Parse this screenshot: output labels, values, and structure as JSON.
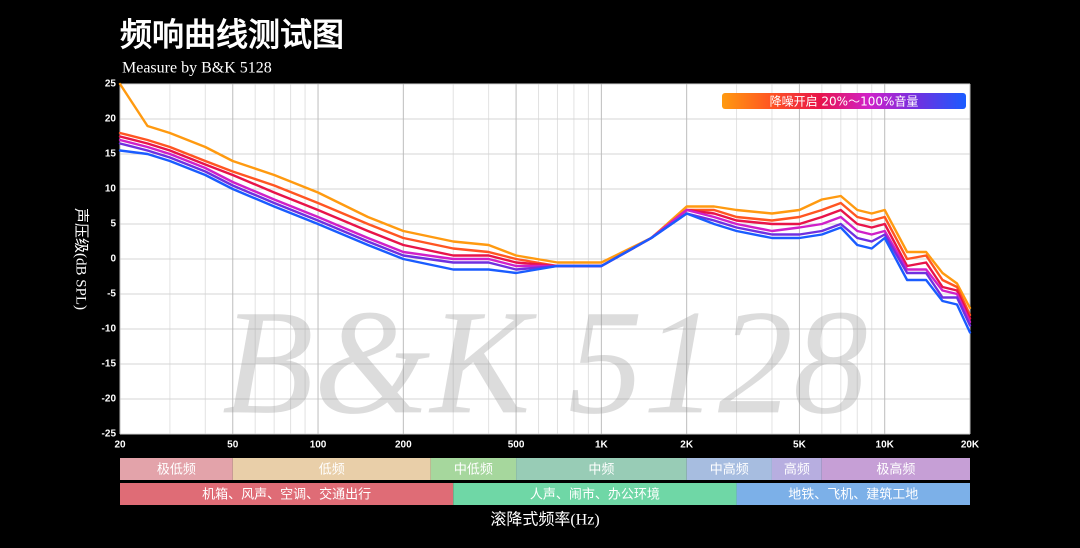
{
  "chart_data": {
    "type": "line",
    "title": "频响曲线测试图",
    "subtitle": "Measure by B&K 5128",
    "watermark": "B&K 5128",
    "legend_text": "降噪开启 20%～100%音量",
    "y_label": "声压级(dB SPL)",
    "x_label": "滚降式频率(Hz)",
    "log_x": true,
    "grid": true,
    "legend_position": "top-right",
    "xlim": [
      20,
      20000
    ],
    "ylim": [
      -25,
      25
    ],
    "xticks": [
      20,
      50,
      100,
      200,
      500,
      {
        "value": 1000,
        "label": "1K"
      },
      {
        "value": 2000,
        "label": "2K"
      },
      {
        "value": 5000,
        "label": "5K"
      },
      {
        "value": 10000,
        "label": "10K"
      },
      {
        "value": 20000,
        "label": "20K"
      }
    ],
    "xminorticks": [
      30,
      40,
      60,
      70,
      80,
      90,
      300,
      400,
      600,
      700,
      800,
      900,
      3000,
      4000,
      6000,
      7000,
      8000,
      9000
    ],
    "yticks": [
      25,
      20,
      15,
      10,
      5,
      0,
      -5,
      -10,
      -15,
      -20,
      -25
    ],
    "x": [
      20,
      25,
      30,
      40,
      50,
      70,
      100,
      150,
      200,
      300,
      400,
      500,
      700,
      1000,
      1500,
      2000,
      2500,
      3000,
      4000,
      5000,
      6000,
      7000,
      8000,
      9000,
      10000,
      12000,
      14000,
      16000,
      18000,
      20000
    ],
    "series": [
      {
        "color": "#ff9a10",
        "values": [
          25,
          19,
          18,
          16,
          14,
          12,
          9.5,
          6,
          4,
          2.5,
          2,
          0.5,
          -0.5,
          -0.5,
          3,
          7.5,
          7.5,
          7,
          6.5,
          7,
          8.5,
          9,
          7,
          6.5,
          7,
          1,
          1,
          -2,
          -3.5,
          -7
        ]
      },
      {
        "color": "#ff5522",
        "values": [
          18,
          17,
          16,
          14,
          12.5,
          10.5,
          8,
          5,
          3,
          1.5,
          1,
          0,
          -1,
          -1,
          3,
          7,
          7,
          6,
          5.5,
          6,
          7,
          8,
          6,
          5.5,
          6,
          0,
          0.5,
          -3,
          -4,
          -8
        ]
      },
      {
        "color": "#e8144a",
        "values": [
          17.5,
          16.5,
          15.5,
          13.5,
          12,
          9.5,
          7,
          4,
          2,
          0.5,
          0.5,
          -0.5,
          -1,
          -1,
          3,
          7,
          6.5,
          5.5,
          5,
          5,
          6,
          7,
          5,
          4.5,
          5,
          -1,
          -0.5,
          -4,
          -4.5,
          -8.5
        ]
      },
      {
        "color": "#d020c8",
        "values": [
          17,
          16,
          15,
          13,
          11,
          8.5,
          6,
          3,
          1,
          0,
          0,
          -1,
          -1,
          -1,
          3,
          7,
          6,
          5,
          4,
          4.5,
          5,
          6,
          4,
          3.5,
          4,
          -1.5,
          -1.5,
          -4.5,
          -5,
          -9
        ]
      },
      {
        "color": "#7030e0",
        "values": [
          16.5,
          15.5,
          14.5,
          12.5,
          10.5,
          8,
          5.5,
          2.5,
          0.5,
          -0.5,
          -0.5,
          -1.5,
          -1,
          -1,
          3,
          6.5,
          5.5,
          4.5,
          3.5,
          3.5,
          4,
          5,
          3,
          2.5,
          3.5,
          -2,
          -2,
          -5.5,
          -5.5,
          -9.5
        ]
      },
      {
        "color": "#1a5cff",
        "values": [
          15.5,
          15,
          14,
          12,
          10,
          7.5,
          5,
          2,
          0,
          -1.5,
          -1.5,
          -2,
          -1,
          -1,
          3,
          6.5,
          5,
          4,
          3,
          3,
          3.5,
          4.5,
          2,
          1.5,
          3,
          -3,
          -3,
          -6,
          -6.5,
          -10.5
        ]
      }
    ],
    "bands": [
      {
        "label": "极低频",
        "from": 20,
        "to": 50,
        "color": "#e3a3aa"
      },
      {
        "label": "低频",
        "from": 50,
        "to": 250,
        "color": "#e9cfa9"
      },
      {
        "label": "中低频",
        "from": 250,
        "to": 500,
        "color": "#a6d79d"
      },
      {
        "label": "中频",
        "from": 500,
        "to": 2000,
        "color": "#98ccb6"
      },
      {
        "label": "中高频",
        "from": 2000,
        "to": 4000,
        "color": "#a7bde0"
      },
      {
        "label": "高频",
        "from": 4000,
        "to": 6000,
        "color": "#b7aee0"
      },
      {
        "label": "极高频",
        "from": 6000,
        "to": 20000,
        "color": "#c69fd6"
      }
    ],
    "zones": [
      {
        "label": "机箱、风声、空调、交通出行",
        "from": 20,
        "to": 300,
        "color": "#df6c76"
      },
      {
        "label": "人声、闹市、办公环境",
        "from": 300,
        "to": 3000,
        "color": "#6fd7a6"
      },
      {
        "label": "地铁、飞机、建筑工地",
        "from": 3000,
        "to": 20000,
        "color": "#7cb0e8"
      }
    ]
  }
}
